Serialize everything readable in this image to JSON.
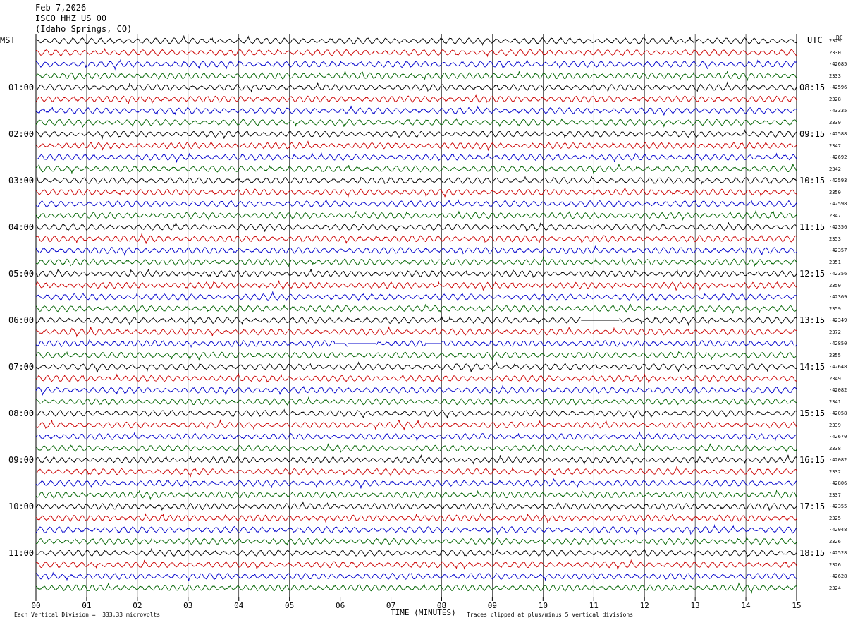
{
  "header": {
    "date": "Feb 7,2026",
    "station": "ISCO HHZ US 00",
    "location": "(Idaho Springs, CO)"
  },
  "left_tz": "MST",
  "right_tz": "UTC",
  "dc_label": "DC",
  "footer": {
    "scale_note": "Each Vertical Division =  333.33 microvolts",
    "xlabel": "TIME (MINUTES)",
    "clip_note": "Traces clipped at plus/minus 5 vertical divisions"
  },
  "colors": {
    "trace_cycle": [
      "#000000",
      "#cc0000",
      "#0000cc",
      "#006400"
    ],
    "grid": "#000000"
  },
  "chart_data": {
    "type": "line",
    "title": "",
    "xlabel": "TIME (MINUTES)",
    "xlim": [
      0,
      15
    ],
    "x_ticks": [
      "00",
      "01",
      "02",
      "03",
      "04",
      "05",
      "06",
      "07",
      "08",
      "09",
      "10",
      "11",
      "12",
      "13",
      "14",
      "15"
    ],
    "n_traces": 48,
    "left_hour_labels": [
      "01:00",
      "02:00",
      "03:00",
      "04:00",
      "05:00",
      "06:00",
      "07:00",
      "08:00",
      "09:00",
      "10:00",
      "11:00"
    ],
    "right_hour_labels": [
      "08:15",
      "09:15",
      "10:15",
      "11:15",
      "12:15",
      "13:15",
      "14:15",
      "15:15",
      "16:15",
      "17:15",
      "18:15"
    ],
    "right_dc_values": [
      "2329",
      "2330",
      "-42685",
      "2333",
      "-42596",
      "2328",
      "-43335",
      "2339",
      "-42588",
      "2347",
      "-42692",
      "2342",
      "-42593",
      "2350",
      "-42598",
      "2347",
      "-42356",
      "2353",
      "-42357",
      "2351",
      "-42356",
      "2350",
      "-42369",
      "2359",
      "-42349",
      "2372",
      "-42850",
      "2355",
      "-42648",
      "2349",
      "-42082",
      "2341",
      "-42058",
      "2339",
      "-42670",
      "2338",
      "-42082",
      "2332",
      "-42806",
      "2337",
      "-42355",
      "2325",
      "-42048",
      "2326",
      "-42528",
      "2326",
      "-42628",
      "2324"
    ],
    "data_gaps": [
      {
        "trace": 24,
        "from_min": 10.75,
        "to_min": 11.5
      },
      {
        "trace": 26,
        "from_min": 5.9,
        "to_min": 6.1
      },
      {
        "trace": 26,
        "from_min": 6.15,
        "to_min": 6.7
      },
      {
        "trace": 26,
        "from_min": 7.7,
        "to_min": 8.0
      }
    ]
  }
}
